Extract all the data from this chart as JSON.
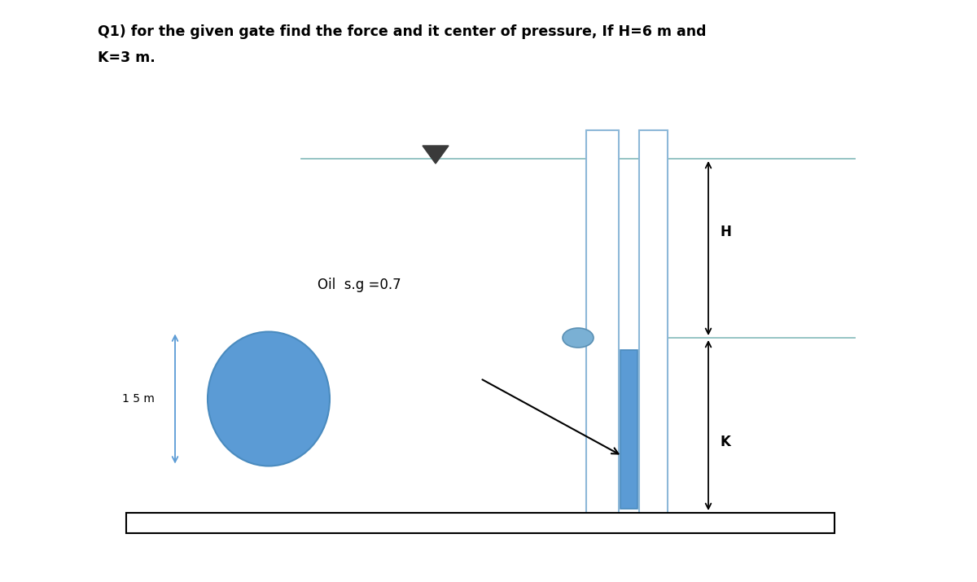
{
  "title_line1": "Q1) for the given gate find the force and it center of pressure, If H=6 m and",
  "title_line2": "K=3 m.",
  "oil_label": "Oil  s.g =0.7",
  "dim_label_15m": "1 5 m",
  "label_H": "H",
  "label_K": "K",
  "bg_color": "#ffffff",
  "circle_color": "#5b9bd5",
  "circle_edge": "#4a8bbf",
  "gate_color": "#5b9bd5",
  "gate_edge": "#4a8bbf",
  "wall_fill": "#ffffff",
  "wall_border": "#8db8d8",
  "hinge_color": "#7ab0d4",
  "hinge_edge": "#5a90b4",
  "water_line_color": "#8cbfbf",
  "arrow_color": "#5b9bd5",
  "title_fontsize": 12.5,
  "label_fontsize": 11,
  "small_label_fontsize": 10
}
